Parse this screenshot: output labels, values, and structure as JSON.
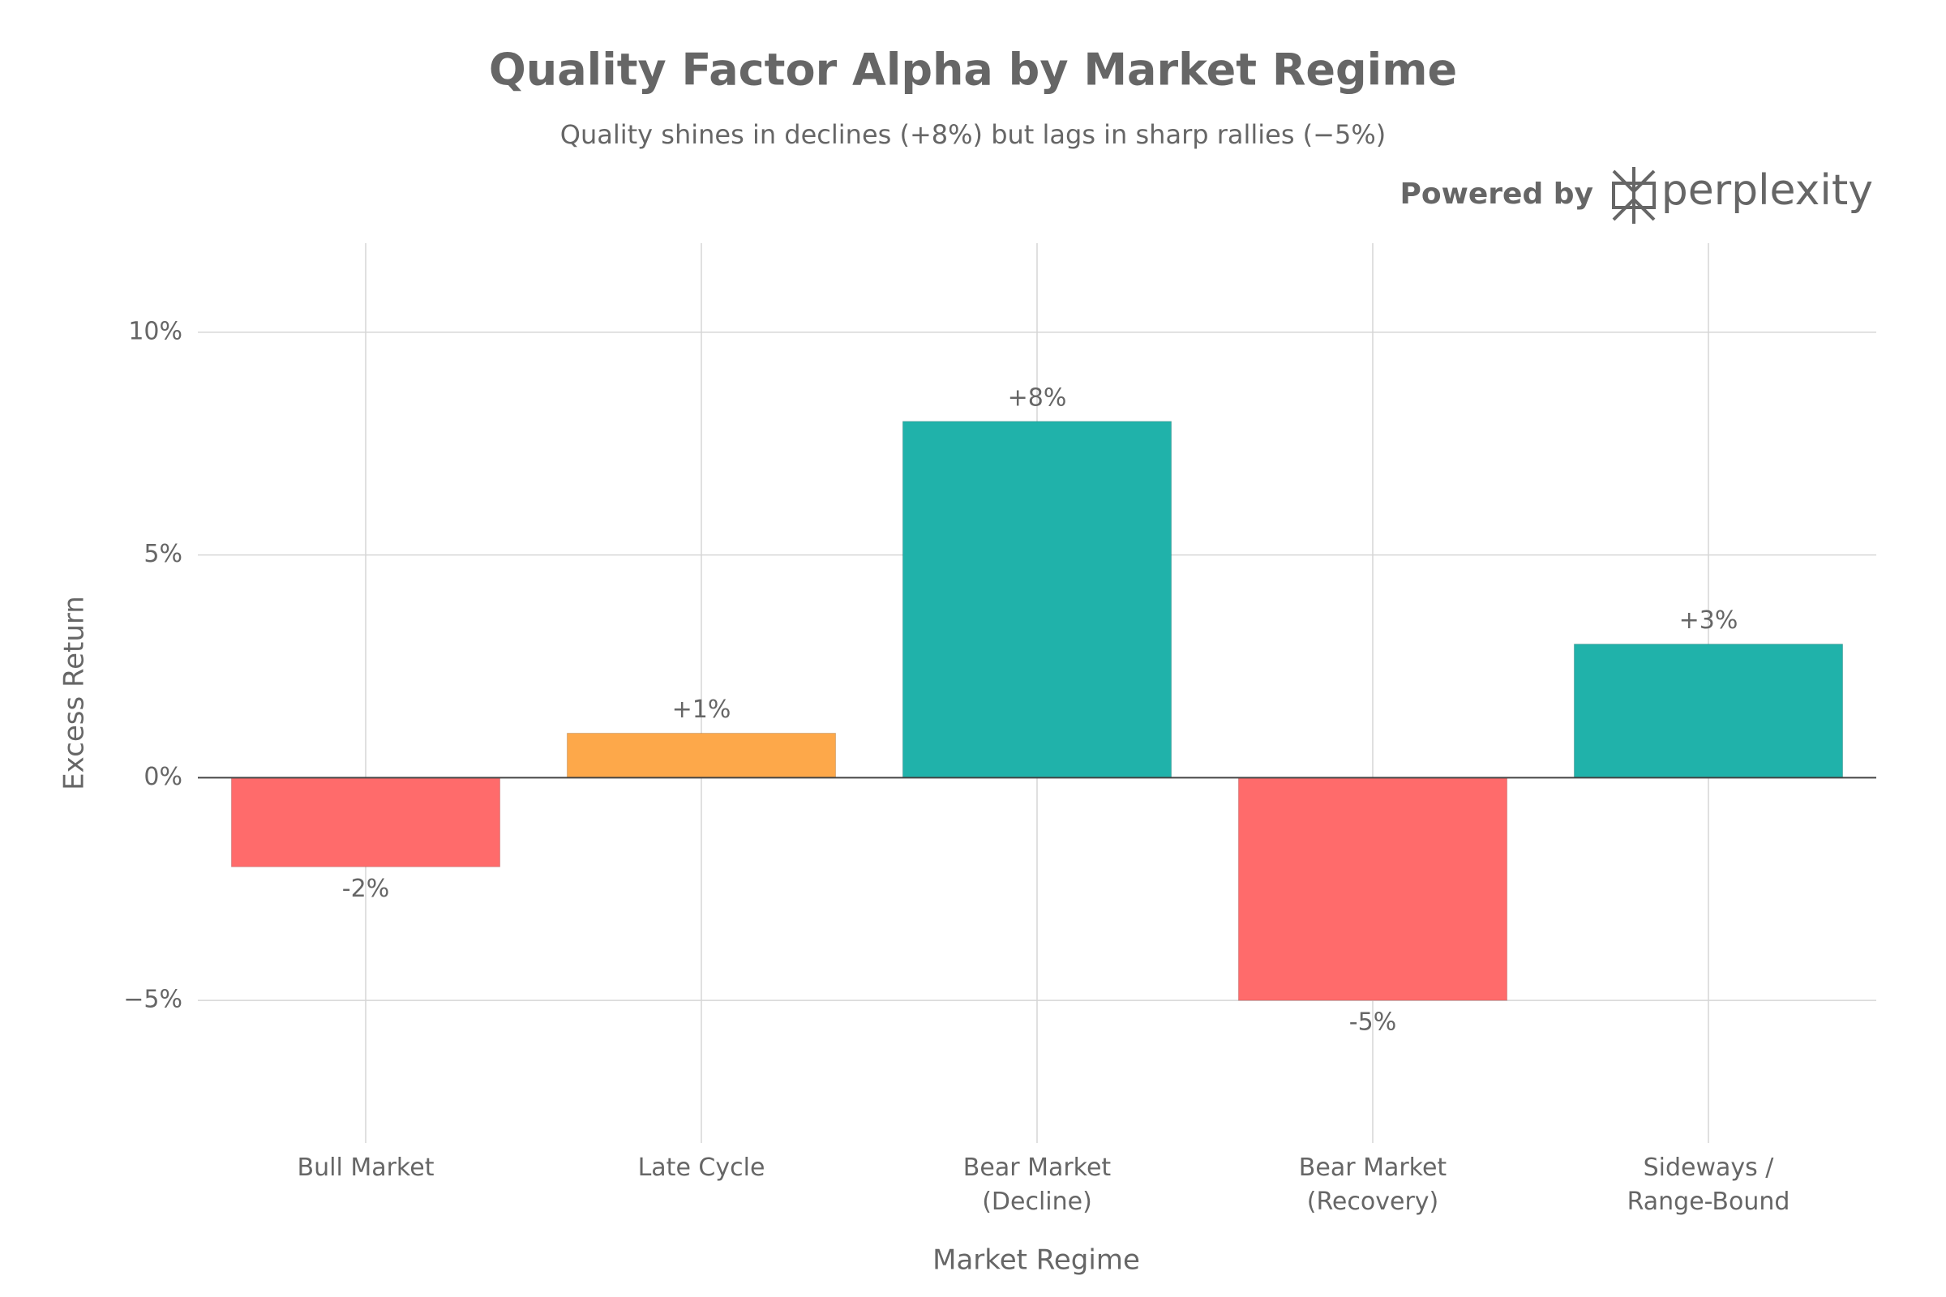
{
  "chart_data": {
    "type": "bar",
    "title": "Quality Factor Alpha by Market Regime",
    "subtitle": "Quality shines in declines (+8%) but lags in sharp rallies (−5%)",
    "branding": {
      "prefix": "Powered by",
      "name": "perplexity"
    },
    "x_label": "Market Regime",
    "y_label": "Excess Return",
    "categories": [
      [
        "Bull Market"
      ],
      [
        "Late Cycle"
      ],
      [
        "Bear Market",
        "(Decline)"
      ],
      [
        "Bear Market",
        "(Recovery)"
      ],
      [
        "Sideways /",
        "Range-Bound"
      ]
    ],
    "values": [
      -2,
      1,
      8,
      -5,
      3
    ],
    "value_labels": [
      "-2%",
      "+1%",
      "+8%",
      "-5%",
      "+3%"
    ],
    "colors": [
      "#ff6b6b",
      "#fda84a",
      "#20b2aa",
      "#ff6b6b",
      "#20b2aa"
    ],
    "ylim": [
      -8.2,
      12
    ],
    "yticks": [
      {
        "value": -5,
        "label": "−5%"
      },
      {
        "value": 0,
        "label": "0%"
      },
      {
        "value": 5,
        "label": "5%"
      },
      {
        "value": 10,
        "label": "10%"
      }
    ],
    "grid": true
  }
}
